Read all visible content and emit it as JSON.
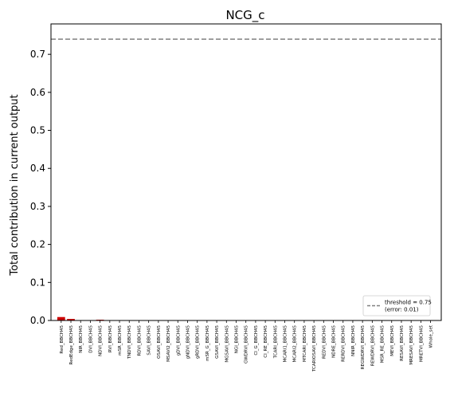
{
  "chart_data": {
    "type": "bar",
    "title": "NCG_c",
    "xlabel": "",
    "ylabel": "Total contribution in current output",
    "ylim": [
      0,
      0.78
    ],
    "yticks": [
      0.0,
      0.1,
      0.2,
      0.3,
      0.4,
      0.5,
      0.6,
      0.7
    ],
    "ytick_labels": [
      "0.0",
      "0.1",
      "0.2",
      "0.3",
      "0.4",
      "0.5",
      "0.6",
      "0.7"
    ],
    "grid": false,
    "legend_position": "lower-right",
    "bar_color": "#cc0000",
    "categories": [
      "Red_BBCH45",
      "RedEdge_BBCH45",
      "NIR_BBCH45",
      "DVI_BBCH45",
      "NDVI_BBCH45",
      "RVI_BBCH45",
      "mSR_BBCH45",
      "TNDVI_BBCH45",
      "RDVI_BBCH45",
      "SAVI_BBCH45",
      "OSAVI_BBCH45",
      "MSAVI2_BBCH45",
      "gDVI_BBCH45",
      "gNDVI_BBCH45",
      "gRDVI_BBCH45",
      "mSR_G_BBCH45",
      "GSAVI_BBCH45",
      "MGSAVI_BBCH45",
      "NGI_BBCH45",
      "GWDRVI_BBCH45",
      "CI_G_BBCH45",
      "CI_RE_BBCH45",
      "TCARI_BBCH45",
      "MCARI1_BBCH45",
      "MCARI2_BBCH45",
      "MTCARI_BBCH45",
      "TCARIOSAVI_BBCH45",
      "REDVI_BBCH45",
      "NDRE_BBCH45",
      "RERDVI_BBCH45",
      "NNIR_BBCH45",
      "REGWDRVI_BBCH45",
      "REWDRVI_BBCH45",
      "MSR_RE_BBCH45",
      "MEVI_BBCH45",
      "RESAVI_BBCH45",
      "MRESAVI_BBCH45",
      "MRETVI_BBCH45",
      "Whole_set"
    ],
    "values": [
      0.009,
      0.004,
      0.0,
      0.0,
      0.002,
      0.0,
      0.0,
      0.0,
      0.0,
      0.0,
      0.0,
      0.0,
      0.0,
      0.0,
      0.0,
      0.0,
      0.0,
      0.0,
      0.0,
      0.0,
      0.0,
      0.0,
      0.0,
      0.0,
      0.0,
      0.0,
      0.0,
      0.0,
      0.0,
      0.0,
      0.0,
      0.0,
      0.0,
      0.0,
      0.0,
      0.0,
      0.0,
      0.0,
      0.0
    ],
    "threshold": {
      "value": 0.74,
      "color": "#808080",
      "legend_line1": "threshold = 0.75",
      "legend_line2": "(error: 0.01)"
    }
  }
}
